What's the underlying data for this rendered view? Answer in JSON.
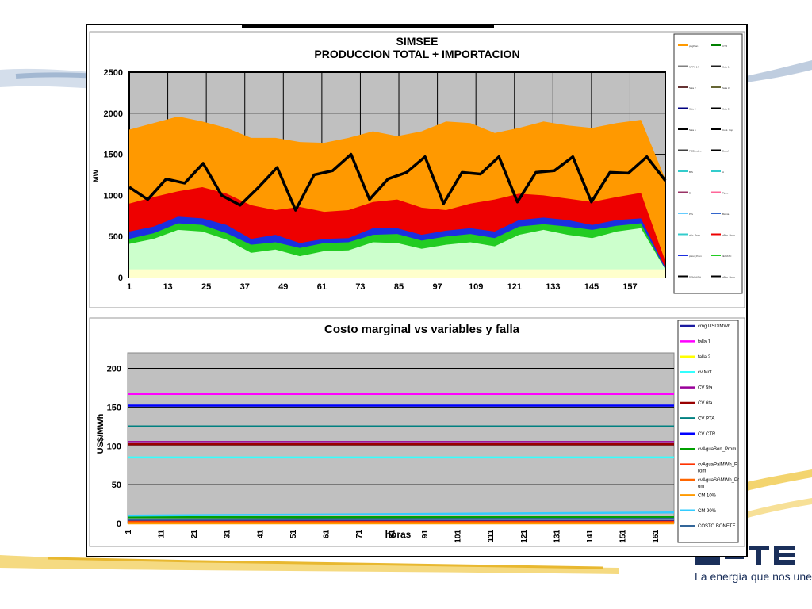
{
  "slide": {
    "logo_tagline": "La energía que nos une",
    "logo_mark": "UTE"
  },
  "chart_data": [
    {
      "type": "area",
      "title": "SIMSEE",
      "subtitle": "PRODUCCION TOTAL + IMPORTACION",
      "xlabel": "",
      "ylabel": "MW",
      "x_ticks": [
        "1",
        "13",
        "25",
        "37",
        "49",
        "61",
        "73",
        "85",
        "97",
        "109",
        "121",
        "133",
        "145",
        "157"
      ],
      "x_range": [
        1,
        168
      ],
      "ylim": [
        0,
        2500
      ],
      "y_ticks": [
        "0",
        "500",
        "1000",
        "1500",
        "2000",
        "2500"
      ],
      "grid": true,
      "legend_position": "right",
      "legend_labels": [
        "pEgPlan",
        "CTR",
        "NPPI+14",
        "Sala 1",
        "Sala 2",
        "Sala 3",
        "Sala 4",
        "Sala 5",
        "Sala 6",
        "Cont. Imp.",
        "7 CBasales",
        "Bonaf",
        "BIS",
        "A",
        "E",
        "Tipos",
        "PTs",
        "Bionia",
        "pEg_Prom",
        "pBon_Prom",
        "pBon_Prom",
        "IEX/ATC",
        "DEMANDA",
        "pBon_Prom"
      ],
      "series": [
        {
          "name": "",
          "color": "#ccffcc",
          "top_values": [
            410,
            470,
            580,
            560,
            460,
            300,
            340,
            260,
            320,
            330,
            430,
            420,
            350,
            400,
            430,
            380,
            520,
            580,
            520,
            480,
            560,
            600,
            100
          ]
        },
        {
          "name": "",
          "color": "#22cc22",
          "top_values": [
            470,
            540,
            660,
            640,
            540,
            400,
            430,
            360,
            420,
            430,
            520,
            530,
            450,
            500,
            530,
            480,
            620,
            650,
            620,
            580,
            630,
            660,
            100
          ]
        },
        {
          "name": "",
          "color": "#1b2fe0",
          "top_values": [
            560,
            620,
            740,
            720,
            640,
            470,
            520,
            420,
            470,
            480,
            600,
            600,
            520,
            570,
            600,
            560,
            700,
            730,
            700,
            640,
            700,
            720,
            120
          ]
        },
        {
          "name": "",
          "color": "#ee0000",
          "top_values": [
            900,
            980,
            1050,
            1100,
            1020,
            880,
            820,
            860,
            800,
            820,
            920,
            950,
            850,
            820,
            900,
            950,
            1020,
            1000,
            960,
            920,
            980,
            1030,
            200
          ]
        },
        {
          "name": "",
          "color": "#ff9900",
          "top_values": [
            1800,
            1880,
            1960,
            1900,
            1820,
            1700,
            1700,
            1650,
            1640,
            1700,
            1780,
            1720,
            1780,
            1900,
            1880,
            1760,
            1820,
            1900,
            1850,
            1820,
            1880,
            1920,
            1200
          ]
        }
      ],
      "line_series": {
        "name": "",
        "color": "#000000",
        "values": [
          1100,
          950,
          1200,
          1150,
          1390,
          1000,
          880,
          1100,
          1340,
          820,
          1250,
          1300,
          1500,
          950,
          1200,
          1280,
          1470,
          900,
          1280,
          1260,
          1470,
          920,
          1280,
          1300,
          1470,
          920,
          1280,
          1270,
          1470,
          1180
        ]
      }
    },
    {
      "type": "line",
      "title": "Costo marginal vs variables y falla",
      "xlabel": "horas",
      "ylabel": "US$/MWh",
      "x_ticks": [
        "1",
        "11",
        "21",
        "31",
        "41",
        "51",
        "61",
        "71",
        "81",
        "91",
        "101",
        "111",
        "121",
        "131",
        "141",
        "151",
        "161"
      ],
      "ylim": [
        0,
        220
      ],
      "y_ticks": [
        "0",
        "50",
        "100",
        "150",
        "200"
      ],
      "grid": true,
      "legend_position": "right",
      "series": [
        {
          "name": "cmg USD/MWh",
          "color": "#1a1aa0",
          "values": [
            3,
            3
          ]
        },
        {
          "name": "falla 1",
          "color": "#ff00ff",
          "values": [
            167,
            167
          ]
        },
        {
          "name": "falla 2",
          "color": "#ffff00",
          "values": [
            1,
            1
          ]
        },
        {
          "name": "cv Mot",
          "color": "#33ffff",
          "values": [
            85,
            85
          ]
        },
        {
          "name": "CV 5ta",
          "color": "#990099",
          "values": [
            105,
            105
          ]
        },
        {
          "name": "CV 6ta",
          "color": "#990000",
          "values": [
            102,
            102
          ]
        },
        {
          "name": "CV PTA",
          "color": "#008080",
          "values": [
            125,
            125
          ]
        },
        {
          "name": "CV CTR",
          "color": "#0000ff",
          "values": [
            152,
            152
          ]
        },
        {
          "name": "cvAguaBon_Prom",
          "color": "#00a000",
          "values": [
            8,
            8
          ]
        },
        {
          "name": "cvAguaPalMWh_Prom",
          "color": "#ff3300",
          "values": [
            2,
            2
          ]
        },
        {
          "name": "cvAguaSGMWh_Prom",
          "color": "#ff6600",
          "values": [
            1,
            1
          ]
        },
        {
          "name": "CM 10%",
          "color": "#ff9900",
          "values": [
            0,
            0
          ]
        },
        {
          "name": "CM 90%",
          "color": "#33ccff",
          "values": [
            10,
            14
          ]
        },
        {
          "name": "COSTO BONETE",
          "color": "#336699",
          "values": [
            5,
            6
          ]
        }
      ]
    }
  ]
}
